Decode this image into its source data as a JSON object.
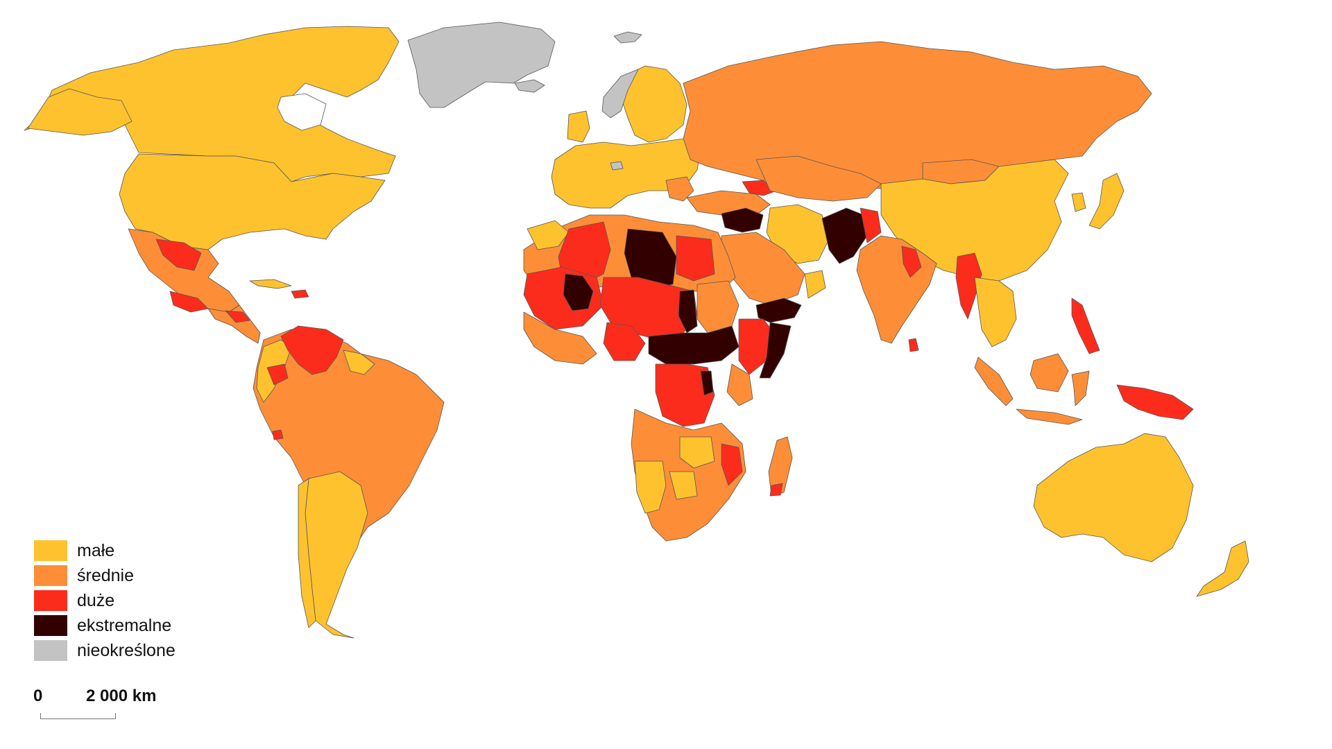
{
  "colors": {
    "male": "#FEC22E",
    "srednie": "#FD8E37",
    "duze": "#FC2C1C",
    "ekstremalne": "#330000",
    "nieokreslone": "#C3C3C3"
  },
  "legend": {
    "items": [
      {
        "label": "małe",
        "color": "#FEC22E"
      },
      {
        "label": "średnie",
        "color": "#FD8E37"
      },
      {
        "label": "duże",
        "color": "#FC2C1C"
      },
      {
        "label": "ekstremalne",
        "color": "#330000"
      },
      {
        "label": "nieokreślone",
        "color": "#C3C3C3"
      }
    ]
  },
  "scale": {
    "zero": "0",
    "distance": "2 000 km"
  }
}
